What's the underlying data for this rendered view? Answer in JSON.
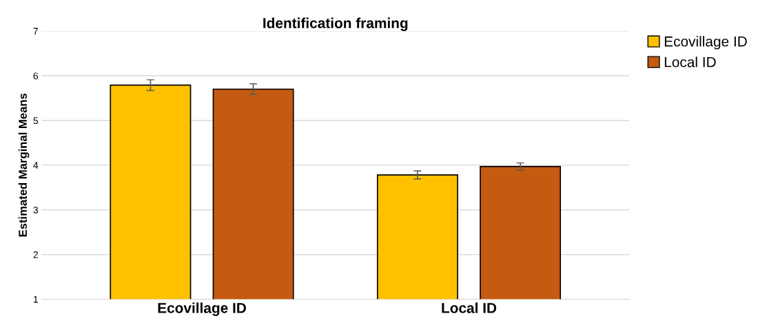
{
  "chart_data": {
    "type": "bar",
    "title": "Identification framing",
    "ylabel": "Estimated Marginal Means",
    "categories": [
      "Ecovillage ID",
      "Local ID"
    ],
    "series": [
      {
        "name": "Ecovillage ID",
        "color": "#ffc000",
        "values": [
          5.79,
          3.78
        ],
        "errors": [
          0.12,
          0.09
        ]
      },
      {
        "name": "Local ID",
        "color": "#c55a11",
        "values": [
          5.7,
          3.97
        ],
        "errors": [
          0.12,
          0.08
        ]
      }
    ],
    "ylim": [
      1,
      7
    ],
    "yticks": [
      1,
      2,
      3,
      4,
      5,
      6,
      7
    ],
    "grid": "y",
    "legend": "top right"
  }
}
